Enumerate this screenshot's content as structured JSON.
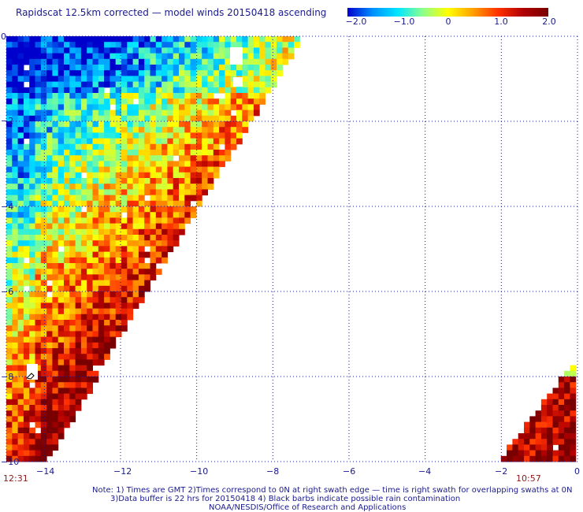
{
  "title": "Rapidscat 12.5km corrected — model winds 20150418 ascending",
  "colorbar": {
    "labels": [
      "−2.0",
      "−1.0",
      "0",
      "1.0",
      "2.0"
    ],
    "colors": [
      "#0000cc",
      "#0090ff",
      "#00e6ff",
      "#8cff8c",
      "#ffff00",
      "#ffa000",
      "#ff3000",
      "#b00000",
      "#780000"
    ]
  },
  "axes": {
    "x_ticks": [
      "−14",
      "−12",
      "−10",
      "−8",
      "−6",
      "−4",
      "−2",
      "0"
    ],
    "y_ticks": [
      "0",
      "−2",
      "−4",
      "−6",
      "−8",
      "−10"
    ],
    "lon_range": [
      -15,
      0
    ],
    "lat_range": [
      -10,
      0
    ],
    "grid": true
  },
  "times": {
    "left": "12:31",
    "right": "10:57"
  },
  "notes": [
    "Note: 1) Times are GMT 2)Times correspond to 0N at right swath edge — time is right swath for overlapping swaths at 0N",
    "3)Data buffer is 22 hrs for 20150418 4) Black barbs indicate possible rain contamination",
    "NOAA/NESDIS/Office of Research and Applications"
  ]
}
